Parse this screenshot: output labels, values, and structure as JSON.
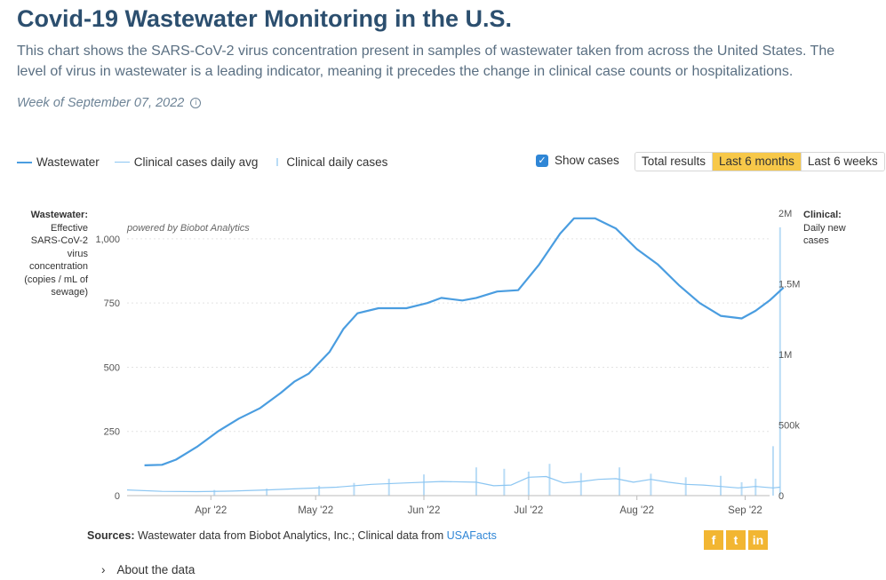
{
  "title": "Covid-19 Wastewater Monitoring in the U.S.",
  "description": "This chart shows the SARS-CoV-2 virus concentration present in samples of wastewater taken from across the United States. The level of virus in wastewater is a leading indicator, meaning it precedes the change in clinical case counts or hospitalizations.",
  "week_label": "Week of September 07, 2022",
  "legend": {
    "wastewater": "Wastewater",
    "clinical_avg": "Clinical cases daily avg",
    "clinical_daily": "Clinical daily cases"
  },
  "show_cases_label": "Show cases",
  "show_cases_checked": true,
  "range_buttons": [
    "Total results",
    "Last 6 months",
    "Last 6 weeks"
  ],
  "active_range": "Last 6 months",
  "left_axis": {
    "title": "Wastewater:",
    "lines": [
      "Effective",
      "SARS-CoV-2",
      "virus",
      "concentration",
      "(copies / mL of",
      "sewage)"
    ]
  },
  "right_axis": {
    "title": "Clinical:",
    "lines": [
      "Daily new",
      "cases"
    ]
  },
  "watermark": "powered by Biobot Analytics",
  "sources_label": "Sources:",
  "sources_text": "Wastewater data from Biobot Analytics, Inc.; Clinical data from",
  "sources_link": "USAFacts",
  "social": [
    "f",
    "t",
    "in"
  ],
  "about_label": "About the data",
  "colors": {
    "title": "#2c4f6f",
    "wastewater": "#4a9de0",
    "clinical_avg": "#8cc6f2",
    "clinical_bar": "#b9dcf6",
    "active_button": "#f7c849",
    "social": "#f2b632"
  },
  "chart_data": {
    "type": "line",
    "x_unit": "days since Mar 8 2022",
    "x_range": [
      0,
      184
    ],
    "x_ticks": [
      {
        "label": "Apr '22",
        "x": 24
      },
      {
        "label": "May '22",
        "x": 54
      },
      {
        "label": "Jun '22",
        "x": 85
      },
      {
        "label": "Jul '22",
        "x": 115
      },
      {
        "label": "Aug '22",
        "x": 146
      },
      {
        "label": "Sep '22",
        "x": 177
      }
    ],
    "left_axis": {
      "range": [
        0,
        1100
      ],
      "ticks": [
        0,
        250,
        500,
        750,
        1000
      ],
      "tick_labels": [
        "0",
        "250",
        "500",
        "750",
        "1,000"
      ]
    },
    "right_axis": {
      "range": [
        0,
        2000000
      ],
      "ticks": [
        0,
        500000,
        1000000,
        1500000,
        2000000
      ],
      "tick_labels": [
        "0",
        "500k",
        "1M",
        "1.5M",
        "2M"
      ]
    },
    "series": [
      {
        "name": "Wastewater",
        "axis": "left",
        "points": [
          [
            5,
            118
          ],
          [
            10,
            120
          ],
          [
            14,
            140
          ],
          [
            20,
            190
          ],
          [
            26,
            250
          ],
          [
            32,
            300
          ],
          [
            38,
            340
          ],
          [
            44,
            400
          ],
          [
            48,
            445
          ],
          [
            52,
            475
          ],
          [
            58,
            560
          ],
          [
            62,
            650
          ],
          [
            66,
            710
          ],
          [
            72,
            730
          ],
          [
            80,
            730
          ],
          [
            86,
            750
          ],
          [
            90,
            770
          ],
          [
            96,
            760
          ],
          [
            100,
            770
          ],
          [
            106,
            795
          ],
          [
            112,
            800
          ],
          [
            118,
            900
          ],
          [
            124,
            1020
          ],
          [
            128,
            1080
          ],
          [
            134,
            1080
          ],
          [
            140,
            1040
          ],
          [
            146,
            960
          ],
          [
            152,
            900
          ],
          [
            158,
            820
          ],
          [
            164,
            750
          ],
          [
            170,
            700
          ],
          [
            176,
            690
          ],
          [
            180,
            720
          ],
          [
            184,
            760
          ],
          [
            188,
            810
          ]
        ]
      },
      {
        "name": "Clinical cases daily avg",
        "axis": "right",
        "points": [
          [
            0,
            40000
          ],
          [
            10,
            30000
          ],
          [
            20,
            28000
          ],
          [
            30,
            32000
          ],
          [
            40,
            40000
          ],
          [
            50,
            50000
          ],
          [
            60,
            60000
          ],
          [
            70,
            80000
          ],
          [
            80,
            90000
          ],
          [
            90,
            100000
          ],
          [
            100,
            95000
          ],
          [
            105,
            70000
          ],
          [
            110,
            75000
          ],
          [
            115,
            130000
          ],
          [
            120,
            135000
          ],
          [
            125,
            90000
          ],
          [
            130,
            100000
          ],
          [
            135,
            115000
          ],
          [
            140,
            120000
          ],
          [
            145,
            95000
          ],
          [
            150,
            115000
          ],
          [
            155,
            95000
          ],
          [
            160,
            80000
          ],
          [
            165,
            75000
          ],
          [
            170,
            65000
          ],
          [
            175,
            55000
          ],
          [
            180,
            65000
          ],
          [
            185,
            55000
          ],
          [
            187,
            60000
          ]
        ]
      },
      {
        "name": "Clinical daily cases",
        "axis": "right",
        "type": "bar",
        "values": [
          [
            25,
            40000
          ],
          [
            40,
            50000
          ],
          [
            55,
            70000
          ],
          [
            65,
            90000
          ],
          [
            75,
            120000
          ],
          [
            85,
            150000
          ],
          [
            100,
            200000
          ],
          [
            108,
            190000
          ],
          [
            115,
            170000
          ],
          [
            121,
            225000
          ],
          [
            130,
            160000
          ],
          [
            141,
            200000
          ],
          [
            150,
            155000
          ],
          [
            160,
            130000
          ],
          [
            170,
            140000
          ],
          [
            176,
            95000
          ],
          [
            180,
            120000
          ],
          [
            185,
            350000
          ],
          [
            187,
            1900000
          ]
        ]
      }
    ]
  }
}
